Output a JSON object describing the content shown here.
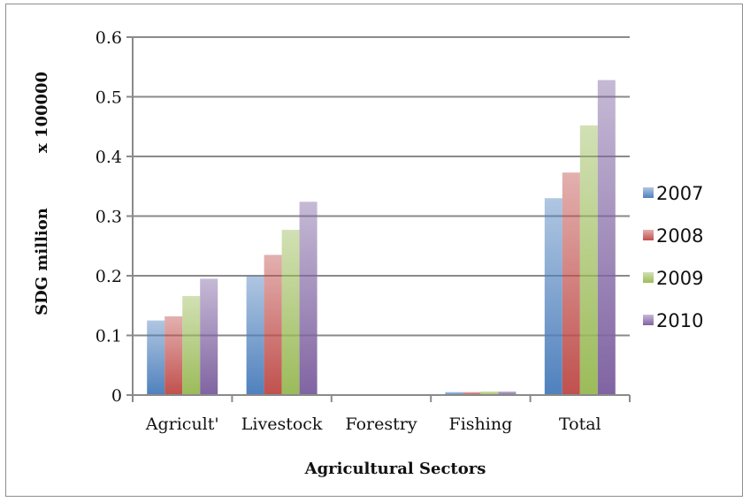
{
  "chart_data": {
    "type": "bar",
    "categories": [
      "Agricult'",
      "Livestock",
      "Forestry",
      "Fishing",
      "Total"
    ],
    "series": [
      {
        "name": "2007",
        "color": "#4f81bd",
        "values": [
          0.125,
          0.2,
          0,
          0.005,
          0.33
        ]
      },
      {
        "name": "2008",
        "color": "#c0504d",
        "values": [
          0.132,
          0.235,
          0,
          0.005,
          0.373
        ]
      },
      {
        "name": "2009",
        "color": "#9bbb59",
        "values": [
          0.166,
          0.277,
          0,
          0.006,
          0.452
        ]
      },
      {
        "name": "2010",
        "color": "#8064a2",
        "values": [
          0.195,
          0.324,
          0,
          0.006,
          0.528
        ]
      }
    ],
    "yticks": [
      "0",
      "0.1",
      "0.2",
      "0.3",
      "0.4",
      "0.5",
      "0.6"
    ],
    "ylim": [
      0,
      0.6
    ],
    "ylabel_left": "SDG million",
    "ylabel_right": "x 100000",
    "xlabel": "Agricultural Sectors",
    "grid": "horizontal",
    "legend_position": "right"
  }
}
